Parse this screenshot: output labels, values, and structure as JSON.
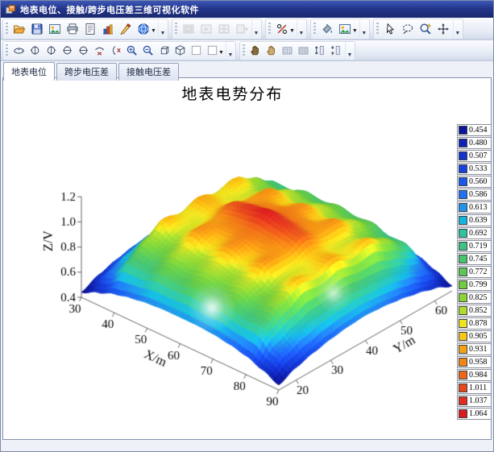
{
  "window": {
    "title": "地表电位、接触/跨步电压差三维可视化软件"
  },
  "toolbars": [
    {
      "row": 1,
      "groups": [
        {
          "disabled": false,
          "buttons": [
            {
              "icon": "open-folder"
            },
            {
              "icon": "save"
            },
            {
              "icon": "image"
            },
            {
              "icon": "print"
            },
            {
              "icon": "report"
            },
            {
              "icon": "bar-chart"
            },
            {
              "icon": "draw-tools"
            },
            {
              "icon": "view-3d",
              "dropdown": true
            }
          ]
        },
        {
          "disabled": true,
          "buttons": [
            {
              "icon": "frame-still"
            },
            {
              "icon": "frame-play"
            },
            {
              "icon": "frame-grid"
            },
            {
              "icon": "frame-export"
            }
          ]
        },
        {
          "disabled": false,
          "buttons": [
            {
              "icon": "percent",
              "dropdown": true
            }
          ]
        },
        {
          "disabled": false,
          "buttons": [
            {
              "icon": "fill-bucket"
            },
            {
              "icon": "export-image",
              "dropdown": true
            }
          ]
        },
        {
          "disabled": false,
          "buttons": [
            {
              "icon": "cursor"
            },
            {
              "icon": "lasso"
            },
            {
              "icon": "zoom-select"
            },
            {
              "icon": "pan-move"
            }
          ]
        }
      ]
    },
    {
      "row": 2,
      "groups": [
        {
          "disabled": false,
          "buttons": [
            {
              "icon": "orbit"
            },
            {
              "icon": "azimuth-left"
            },
            {
              "icon": "azimuth-right"
            },
            {
              "icon": "elevation-up"
            },
            {
              "icon": "elevation-down"
            },
            {
              "icon": "rotate-x"
            },
            {
              "icon": "rotate-y"
            },
            {
              "icon": "zoom-in"
            },
            {
              "icon": "zoom-out"
            },
            {
              "icon": "box-orthographic"
            },
            {
              "icon": "box-perspective"
            },
            {
              "icon": "blank-swatch"
            },
            {
              "icon": "blank-swatch",
              "dropdown": true
            }
          ]
        },
        {
          "disabled": false,
          "buttons": [
            {
              "icon": "grab-hand"
            },
            {
              "icon": "grab-hand-light"
            },
            {
              "icon": "mesh-grid"
            },
            {
              "icon": "mesh-grid-dense"
            },
            {
              "icon": "axis-stretch"
            },
            {
              "icon": "axis-shrink"
            }
          ]
        }
      ]
    }
  ],
  "tabs": [
    {
      "id": "surface-potential",
      "label": "地表电位",
      "active": true
    },
    {
      "id": "step-voltage",
      "label": "跨步电压差",
      "active": false
    },
    {
      "id": "touch-voltage",
      "label": "接触电压差",
      "active": false
    }
  ],
  "legend": {
    "values": [
      0.454,
      0.48,
      0.507,
      0.533,
      0.56,
      0.586,
      0.613,
      0.639,
      0.692,
      0.719,
      0.745,
      0.772,
      0.799,
      0.825,
      0.852,
      0.878,
      0.905,
      0.931,
      0.958,
      0.984,
      1.011,
      1.037,
      1.064
    ],
    "colors": [
      "#0B169B",
      "#0E23B5",
      "#1232CC",
      "#1643DF",
      "#1A57EC",
      "#1F71F0",
      "#1E93E8",
      "#14B5DC",
      "#2EC29F",
      "#3CC384",
      "#4AC46A",
      "#5BC853",
      "#70CD40",
      "#8CD434",
      "#AFDB2C",
      "#EFE51F",
      "#F8C614",
      "#F6A313",
      "#F28614",
      "#ED6717",
      "#E6471B",
      "#E02D1E",
      "#DA1A1C"
    ]
  },
  "chart_data": {
    "type": "surface",
    "title": "地表电势分布",
    "xlabel": "X/m",
    "ylabel": "Y/m",
    "zlabel": "Z/V",
    "xticks": [
      30,
      40,
      50,
      60,
      70,
      80,
      90
    ],
    "yticks": [
      20,
      30,
      40,
      50,
      60
    ],
    "zticks": [
      0.4,
      0.6,
      0.8,
      1.0,
      1.2
    ],
    "xlim": [
      30,
      90
    ],
    "ylim": [
      15,
      65
    ],
    "zlim": [
      0.4,
      1.2
    ],
    "colormap": "jet",
    "x": [
      30,
      35,
      40,
      45,
      50,
      55,
      60,
      65,
      70,
      75,
      80,
      85,
      90
    ],
    "y": [
      15,
      20,
      25,
      30,
      35,
      40,
      45,
      50,
      55,
      60,
      65
    ],
    "z": [
      [
        0.44,
        0.5,
        0.55,
        0.58,
        0.6,
        0.61,
        0.61,
        0.61,
        0.6,
        0.58,
        0.55,
        0.5,
        0.44
      ],
      [
        0.5,
        0.6,
        0.74,
        0.73,
        0.78,
        0.76,
        0.79,
        0.76,
        0.78,
        0.73,
        0.74,
        0.6,
        0.5
      ],
      [
        0.54,
        0.66,
        0.84,
        0.8,
        0.86,
        0.83,
        0.86,
        0.83,
        0.86,
        0.8,
        0.84,
        0.66,
        0.54
      ],
      [
        0.57,
        0.7,
        0.92,
        0.86,
        0.95,
        0.9,
        0.95,
        0.9,
        0.95,
        0.86,
        0.92,
        0.7,
        0.57
      ],
      [
        0.59,
        0.72,
        0.88,
        0.87,
        0.94,
        0.96,
        0.97,
        0.96,
        0.94,
        0.87,
        0.88,
        0.72,
        0.59
      ],
      [
        0.6,
        0.74,
        0.93,
        0.91,
        1.0,
        1.03,
        1.06,
        1.03,
        1.0,
        0.91,
        0.93,
        0.74,
        0.6
      ],
      [
        0.59,
        0.72,
        0.88,
        0.87,
        0.94,
        0.96,
        0.97,
        0.96,
        0.94,
        0.87,
        0.88,
        0.72,
        0.59
      ],
      [
        0.57,
        0.7,
        0.92,
        0.86,
        0.95,
        0.9,
        0.95,
        0.9,
        0.95,
        0.86,
        0.92,
        0.7,
        0.57
      ],
      [
        0.54,
        0.66,
        0.84,
        0.8,
        0.86,
        0.83,
        0.86,
        0.83,
        0.86,
        0.8,
        0.84,
        0.66,
        0.54
      ],
      [
        0.5,
        0.6,
        0.74,
        0.73,
        0.78,
        0.76,
        0.79,
        0.76,
        0.78,
        0.73,
        0.74,
        0.6,
        0.5
      ],
      [
        0.44,
        0.5,
        0.55,
        0.58,
        0.6,
        0.61,
        0.61,
        0.61,
        0.6,
        0.58,
        0.55,
        0.5,
        0.44
      ]
    ]
  }
}
